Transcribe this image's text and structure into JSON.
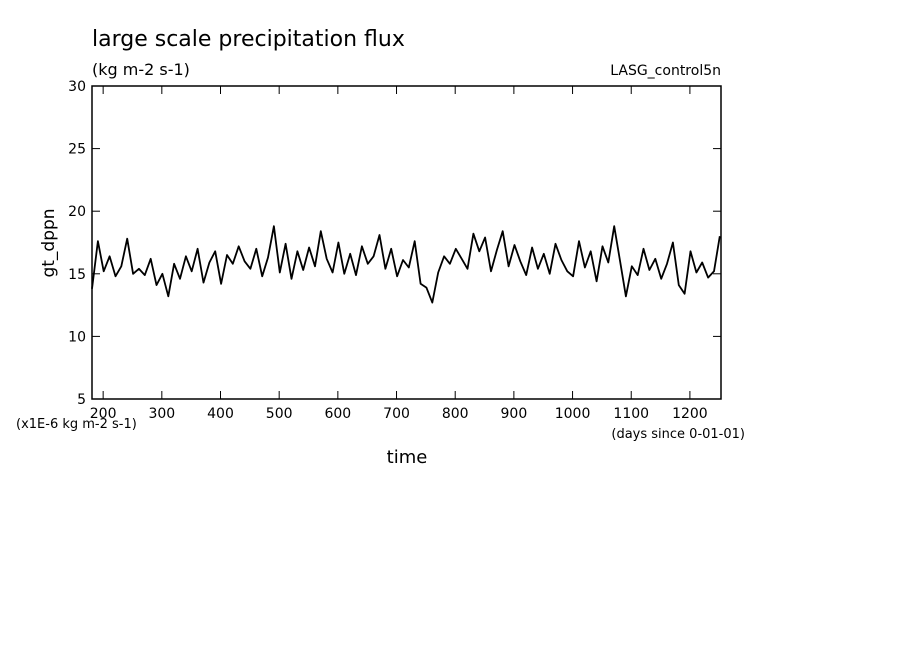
{
  "chart_data": {
    "type": "line",
    "title": "large scale precipitation flux",
    "subtitle": "(kg m-2 s-1)",
    "annotation": "LASG_control5n",
    "y_label": "gt_dppn",
    "y_unit_note": "(x1E-6 kg m-2 s-1)",
    "x_unit_note": "(days since 0-01-01)",
    "x_label": "time",
    "xlim": [
      181,
      1253
    ],
    "ylim": [
      5,
      30
    ],
    "xticks": [
      200,
      300,
      400,
      500,
      600,
      700,
      800,
      900,
      1000,
      1100,
      1200
    ],
    "yticks": [
      5,
      10,
      15,
      20,
      25,
      30
    ],
    "x": [
      181,
      191,
      201,
      211,
      221,
      231,
      241,
      251,
      261,
      271,
      281,
      291,
      301,
      311,
      321,
      331,
      341,
      351,
      361,
      371,
      381,
      391,
      401,
      411,
      421,
      431,
      441,
      451,
      461,
      471,
      481,
      491,
      501,
      511,
      521,
      531,
      541,
      551,
      561,
      571,
      581,
      591,
      601,
      611,
      621,
      631,
      641,
      651,
      661,
      671,
      681,
      691,
      701,
      711,
      721,
      731,
      741,
      751,
      761,
      771,
      781,
      791,
      801,
      811,
      821,
      831,
      841,
      851,
      861,
      871,
      881,
      891,
      901,
      911,
      921,
      931,
      941,
      951,
      961,
      971,
      981,
      991,
      1001,
      1011,
      1021,
      1031,
      1041,
      1051,
      1061,
      1071,
      1081,
      1091,
      1101,
      1111,
      1121,
      1131,
      1141,
      1151,
      1161,
      1171,
      1181,
      1191,
      1201,
      1211,
      1221,
      1231,
      1241,
      1251
    ],
    "series": [
      {
        "color": "#000000",
        "values": [
          13.8,
          17.6,
          15.2,
          16.4,
          14.8,
          15.6,
          17.8,
          15.0,
          15.4,
          14.9,
          16.2,
          14.1,
          15.0,
          13.2,
          15.8,
          14.6,
          16.4,
          15.2,
          17.0,
          14.3,
          15.9,
          16.8,
          14.2,
          16.5,
          15.8,
          17.2,
          16.0,
          15.4,
          17.0,
          14.8,
          16.3,
          18.8,
          15.1,
          17.4,
          14.6,
          16.8,
          15.3,
          17.1,
          15.6,
          18.4,
          16.2,
          15.1,
          17.5,
          15.0,
          16.6,
          14.9,
          17.2,
          15.8,
          16.4,
          18.1,
          15.4,
          17.0,
          14.8,
          16.1,
          15.5,
          17.6,
          14.2,
          13.9,
          12.7,
          15.1,
          16.4,
          15.8,
          17.0,
          16.2,
          15.4,
          18.2,
          16.8,
          17.9,
          15.2,
          16.9,
          18.4,
          15.6,
          17.3,
          16.0,
          14.9,
          17.1,
          15.4,
          16.6,
          15.0,
          17.4,
          16.1,
          15.2,
          14.8,
          17.6,
          15.5,
          16.8,
          14.4,
          17.2,
          15.9,
          18.8,
          16.0,
          13.2,
          15.6,
          14.9,
          17.0,
          15.3,
          16.2,
          14.6,
          15.8,
          17.5,
          14.1,
          13.4,
          16.8,
          15.1,
          15.9,
          14.7,
          15.2,
          18.0
        ]
      }
    ]
  }
}
